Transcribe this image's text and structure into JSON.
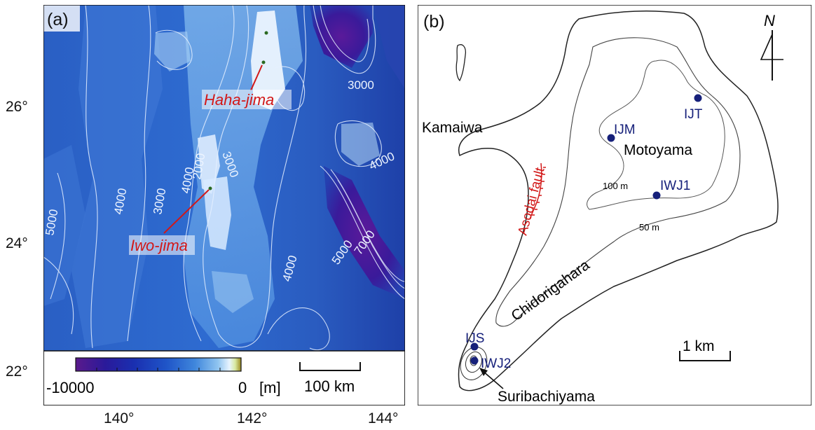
{
  "panel_a": {
    "label": "(a)",
    "islands": [
      {
        "name": "Haha-jima"
      },
      {
        "name": "Iwo-jima"
      }
    ],
    "contour_labels": [
      "3000",
      "3000",
      "4000",
      "2000",
      "3000",
      "4000",
      "5000",
      "5000",
      "7000",
      "4000",
      "4000"
    ],
    "colorbar": {
      "min_label": "-10000",
      "max_label": "0",
      "unit": "[m]",
      "colors": [
        "#5a1a8c",
        "#2a1a9a",
        "#1a2fb0",
        "#1f55c8",
        "#3f86dc",
        "#8fc4f0",
        "#e8f4ff",
        "#9a8a20"
      ]
    },
    "scale": {
      "label": "100 km"
    },
    "lat_ticks": [
      "26°",
      "24°",
      "22°"
    ],
    "lon_ticks": [
      "140°",
      "142°",
      "144°"
    ],
    "colors": {
      "annotation": "#d21818",
      "contour": "#e6f0ff"
    }
  },
  "panel_b": {
    "label": "(b)",
    "north_label": "N",
    "places": {
      "kamaiwa": "Kamaiwa",
      "motoyama": "Motoyama",
      "chidorigahara": "Chidorigahara",
      "suribachiyama": "Suribachiyama",
      "asodai_fault": "Asodai fault"
    },
    "stations": [
      {
        "name": "IJT"
      },
      {
        "name": "IJM"
      },
      {
        "name": "IWJ1"
      },
      {
        "name": "IJS"
      },
      {
        "name": "IWJ2"
      }
    ],
    "contours": {
      "c100": "100 m",
      "c50": "50 m"
    },
    "scale": {
      "label": "1 km"
    },
    "colors": {
      "station": "#16207a",
      "fault": "#d21818"
    }
  }
}
